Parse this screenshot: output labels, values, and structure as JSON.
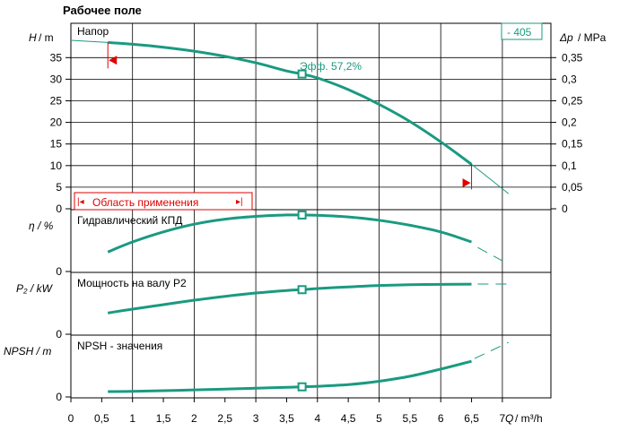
{
  "header": {
    "title": "Рабочее поле"
  },
  "badge": "- 405",
  "colors": {
    "curve": "#1a9a80",
    "extension": "#1a9a80",
    "marker": "#e00000",
    "grid": "#000000"
  },
  "xaxis": {
    "ticks": [
      "0",
      "0,5",
      "1",
      "1,5",
      "2",
      "2,5",
      "3",
      "3,5",
      "4",
      "4,5",
      "5",
      "5,5",
      "6",
      "6,5",
      "7"
    ],
    "label_q": "Q",
    "label_unit": "/ m³/h"
  },
  "panels": {
    "head": {
      "ylabel_sym": "H",
      "ylabel_unit": "/ m",
      "yticks": [
        "0",
        "5",
        "10",
        "15",
        "20",
        "25",
        "30",
        "35"
      ],
      "right_label_sym": "Δp",
      "right_label_unit": "/ MPa",
      "right_ticks": [
        "0",
        "0,05",
        "0,1",
        "0,15",
        "0,2",
        "0,25",
        "0,3",
        "0,35"
      ],
      "caption": "Напор",
      "eff_label": "Эфф.  57,2%",
      "range_label": "Область применения"
    },
    "eff": {
      "ylabel": "η / %",
      "ytick": "0",
      "caption": "Гидравлический КПД"
    },
    "power": {
      "ylabel": "P₂ / kW",
      "ytick": "0",
      "caption": "Мощность на валу P2"
    },
    "npsh": {
      "ylabel": "NPSH  / m",
      "ytick": "0",
      "caption": "NPSH - значения"
    }
  },
  "chart_data": [
    {
      "type": "line",
      "title": "Напор",
      "xlabel": "Q / m³/h",
      "ylabel": "H / m",
      "xlim": [
        0,
        7.5
      ],
      "ylim": [
        0,
        40
      ],
      "y2label": "Δp / MPa",
      "y2lim": [
        0,
        0.4
      ],
      "series": [
        {
          "name": "Напор",
          "x": [
            0.6,
            1.0,
            1.5,
            2.0,
            2.5,
            3.0,
            3.5,
            3.75,
            4.0,
            4.5,
            5.0,
            5.5,
            6.0,
            6.5
          ],
          "y": [
            38.5,
            38.1,
            37.4,
            36.5,
            35.3,
            33.8,
            31.9,
            31.2,
            30.3,
            27.6,
            24.2,
            20.2,
            15.5,
            10.3
          ]
        }
      ],
      "extension": {
        "x": [
          0,
          0.6
        ],
        "y": [
          39.0,
          38.5
        ]
      },
      "extension_right": {
        "x": [
          6.5,
          7.1
        ],
        "y": [
          10.3,
          3.5
        ]
      },
      "operating_point": {
        "x": 3.75,
        "y": 31.2
      },
      "application_range": [
        0.6,
        6.5
      ]
    },
    {
      "type": "line",
      "title": "Гидравлический КПД",
      "ylabel": "η / %",
      "ylim": [
        0,
        1
      ],
      "series": [
        {
          "name": "Гидравлический КПД",
          "x": [
            0.6,
            1.0,
            1.5,
            2.0,
            2.5,
            3.0,
            3.5,
            3.75,
            4.0,
            4.5,
            5.0,
            5.5,
            6.0,
            6.5
          ],
          "y": [
            0.32,
            0.5,
            0.68,
            0.82,
            0.91,
            0.96,
            0.985,
            0.985,
            0.98,
            0.95,
            0.89,
            0.8,
            0.68,
            0.5
          ]
        }
      ],
      "extension_right": {
        "x": [
          6.6,
          7.1
        ],
        "y": [
          0.4,
          0.1
        ]
      },
      "operating_point": {
        "x": 3.75,
        "y": 0.985
      }
    },
    {
      "type": "line",
      "title": "Мощность на валу P2",
      "ylabel": "P₂ / kW",
      "ylim": [
        0,
        1
      ],
      "series": [
        {
          "name": "Мощность на валу P2",
          "x": [
            0.6,
            1.0,
            1.5,
            2.0,
            2.5,
            3.0,
            3.5,
            3.75,
            4.0,
            4.5,
            5.0,
            5.5,
            6.0,
            6.5
          ],
          "y": [
            0.35,
            0.42,
            0.5,
            0.58,
            0.65,
            0.71,
            0.755,
            0.77,
            0.79,
            0.82,
            0.845,
            0.86,
            0.865,
            0.87
          ]
        }
      ],
      "extension_right": {
        "x": [
          6.6,
          7.1
        ],
        "y": [
          0.87,
          0.87
        ]
      },
      "operating_point": {
        "x": 3.75,
        "y": 0.77
      }
    },
    {
      "type": "line",
      "title": "NPSH - значения",
      "ylabel": "NPSH / m",
      "ylim": [
        0,
        1
      ],
      "series": [
        {
          "name": "NPSH - значения",
          "x": [
            0.6,
            1.0,
            1.5,
            2.0,
            2.5,
            3.0,
            3.5,
            3.75,
            4.0,
            4.5,
            5.0,
            5.5,
            6.0,
            6.5
          ],
          "y": [
            0.065,
            0.068,
            0.08,
            0.095,
            0.11,
            0.125,
            0.14,
            0.15,
            0.16,
            0.19,
            0.25,
            0.34,
            0.47,
            0.61
          ]
        }
      ],
      "extension_right": {
        "x": [
          6.55,
          7.1
        ],
        "y": [
          0.66,
          0.95
        ]
      },
      "operating_point": {
        "x": 3.75,
        "y": 0.15
      }
    }
  ]
}
